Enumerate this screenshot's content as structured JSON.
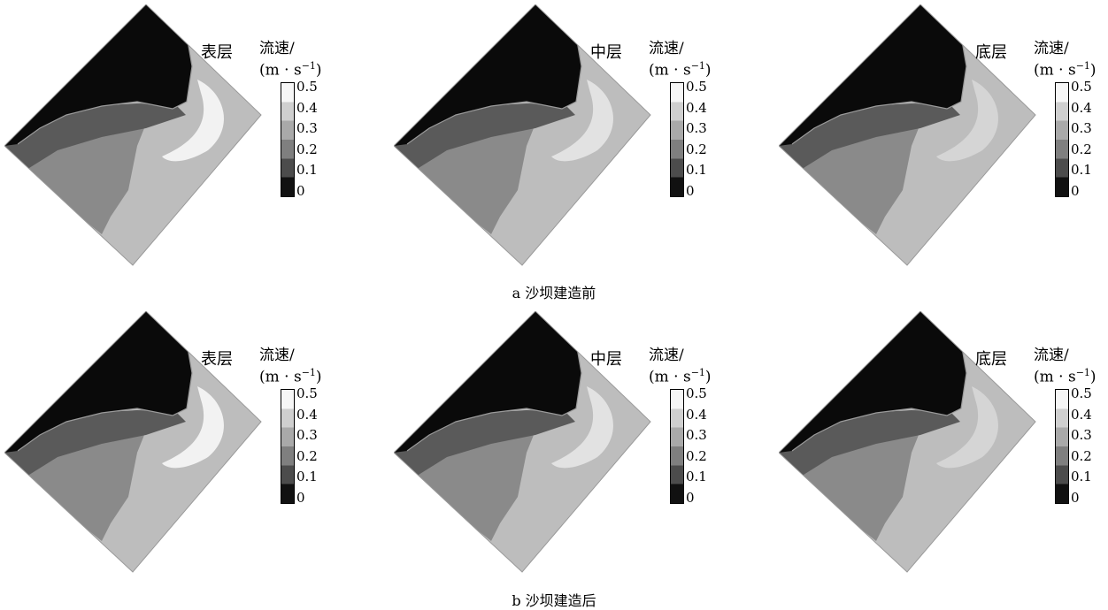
{
  "rows": [
    {
      "caption": "a 沙坝建造前",
      "panels": [
        {
          "layer": "表层",
          "title_line1": "流速/",
          "title_line2": "(m · s",
          "title_sup": "−1",
          "title_close": ")"
        },
        {
          "layer": "中层",
          "title_line1": "流速/",
          "title_line2": "(m · s",
          "title_sup": "−1",
          "title_close": ")"
        },
        {
          "layer": "底层",
          "title_line1": "流速/",
          "title_line2": "(m · s",
          "title_sup": "−1",
          "title_close": ")"
        }
      ]
    },
    {
      "caption": "b 沙坝建造后",
      "panels": [
        {
          "layer": "表层",
          "title_line1": "流速/",
          "title_line2": "(m · s",
          "title_sup": "−1",
          "title_close": ")"
        },
        {
          "layer": "中层",
          "title_line1": "流速/",
          "title_line2": "(m · s",
          "title_sup": "−1",
          "title_close": ")"
        },
        {
          "layer": "底层",
          "title_line1": "流速/",
          "title_line2": "(m · s",
          "title_sup": "−1",
          "title_close": ")"
        }
      ]
    }
  ],
  "colorbar": {
    "ticks": [
      "0.5",
      "0.4",
      "0.3",
      "0.2",
      "0.1",
      "0"
    ],
    "colors": [
      "#f6f6f6",
      "#cfcfcf",
      "#a9a9a9",
      "#7f7f7f",
      "#4c4c4c",
      "#111111"
    ]
  }
}
